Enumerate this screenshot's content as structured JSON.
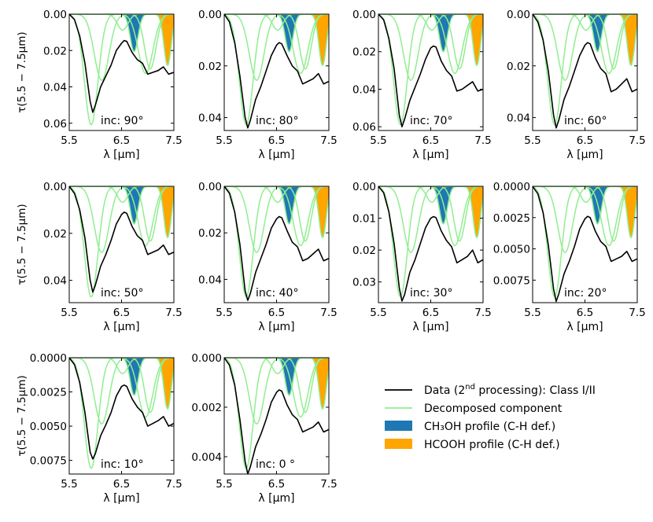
{
  "figure": {
    "data_label": "Data (2",
    "data_label_sup": "nd",
    "data_label_rest": " processing): Class I/II",
    "component_label": "Decomposed component",
    "ch3oh_label": "CH₃OH profile (C-H def.)",
    "hcooh_label": "HCOOH profile (C-H def.)",
    "xlabel": "λ [μm]",
    "ylabel": "τ(5.5 − 7.5μm)",
    "colors": {
      "data": "#000000",
      "component": "#90ee90",
      "ch3oh": "#1f77b4",
      "hcooh": "#ffa500"
    }
  },
  "chart_data": [
    {
      "type": "line",
      "panel": 1,
      "label": "inc: 90°",
      "xlim": [
        5.5,
        7.5
      ],
      "xticks": [
        "5.5",
        "6.5",
        "7.5"
      ],
      "ylim": [
        0.0,
        0.064
      ],
      "yticks": [
        "0.00",
        "0.02",
        "0.04",
        "0.06"
      ],
      "ytick_values": [
        0.0,
        0.02,
        0.04,
        0.06
      ],
      "ylabel": "τ(5.5 − 7.5μm)",
      "xlabel": "λ [μm]",
      "x": [
        5.5,
        5.6,
        5.7,
        5.8,
        5.9,
        5.95,
        6.0,
        6.1,
        6.2,
        6.3,
        6.4,
        6.5,
        6.55,
        6.6,
        6.7,
        6.8,
        6.9,
        7.0,
        7.1,
        7.2,
        7.3,
        7.4,
        7.5
      ],
      "tau": [
        0.0,
        0.003,
        0.012,
        0.027,
        0.048,
        0.054,
        0.05,
        0.04,
        0.034,
        0.028,
        0.02,
        0.016,
        0.0145,
        0.015,
        0.021,
        0.025,
        0.027,
        0.033,
        0.032,
        0.031,
        0.029,
        0.033,
        0.032
      ]
    },
    {
      "type": "line",
      "panel": 2,
      "label": "inc: 80°",
      "xlim": [
        5.5,
        7.5
      ],
      "xticks": [
        "5.5",
        "6.5",
        "7.5"
      ],
      "ylim": [
        0.0,
        0.045
      ],
      "yticks": [
        "0.00",
        "0.02",
        "0.04"
      ],
      "ytick_values": [
        0.0,
        0.02,
        0.04
      ],
      "ylabel": "",
      "xlabel": "λ [μm]",
      "x": [
        5.5,
        5.6,
        5.7,
        5.8,
        5.9,
        5.95,
        6.0,
        6.1,
        6.2,
        6.3,
        6.4,
        6.5,
        6.55,
        6.6,
        6.7,
        6.8,
        6.9,
        7.0,
        7.1,
        7.2,
        7.3,
        7.4,
        7.5
      ],
      "tau": [
        0.0,
        0.003,
        0.011,
        0.024,
        0.04,
        0.044,
        0.041,
        0.033,
        0.028,
        0.022,
        0.016,
        0.012,
        0.011,
        0.0115,
        0.016,
        0.02,
        0.022,
        0.027,
        0.026,
        0.025,
        0.023,
        0.027,
        0.026
      ]
    },
    {
      "type": "line",
      "panel": 3,
      "label": "inc: 70°",
      "xlim": [
        5.5,
        7.5
      ],
      "xticks": [
        "5.5",
        "6.5",
        "7.5"
      ],
      "ylim": [
        0.0,
        0.062
      ],
      "yticks": [
        "0.00",
        "0.02",
        "0.04",
        "0.06"
      ],
      "ytick_values": [
        0.0,
        0.02,
        0.04,
        0.06
      ],
      "ylabel": "",
      "xlabel": "λ [μm]",
      "x": [
        5.5,
        5.6,
        5.7,
        5.8,
        5.9,
        5.95,
        6.0,
        6.1,
        6.2,
        6.3,
        6.4,
        6.5,
        6.55,
        6.6,
        6.7,
        6.8,
        6.9,
        7.0,
        7.1,
        7.2,
        7.3,
        7.4,
        7.5
      ],
      "tau": [
        0.0,
        0.003,
        0.013,
        0.029,
        0.054,
        0.06,
        0.056,
        0.046,
        0.039,
        0.032,
        0.024,
        0.018,
        0.017,
        0.0175,
        0.025,
        0.03,
        0.033,
        0.041,
        0.04,
        0.038,
        0.036,
        0.041,
        0.04
      ]
    },
    {
      "type": "line",
      "panel": 4,
      "label": "inc: 60°",
      "xlim": [
        5.5,
        7.5
      ],
      "xticks": [
        "5.5",
        "6.5",
        "7.5"
      ],
      "ylim": [
        0.0,
        0.045
      ],
      "yticks": [
        "0.00",
        "0.02",
        "0.04"
      ],
      "ytick_values": [
        0.0,
        0.02,
        0.04
      ],
      "ylabel": "",
      "xlabel": "λ [μm]",
      "x": [
        5.5,
        5.6,
        5.7,
        5.8,
        5.9,
        5.95,
        6.0,
        6.1,
        6.2,
        6.3,
        6.4,
        6.5,
        6.55,
        6.6,
        6.7,
        6.8,
        6.9,
        7.0,
        7.1,
        7.2,
        7.3,
        7.4,
        7.5
      ],
      "tau": [
        0.0,
        0.003,
        0.01,
        0.022,
        0.039,
        0.044,
        0.041,
        0.033,
        0.028,
        0.022,
        0.016,
        0.012,
        0.011,
        0.0115,
        0.017,
        0.021,
        0.023,
        0.03,
        0.029,
        0.027,
        0.025,
        0.03,
        0.029
      ]
    },
    {
      "type": "line",
      "panel": 5,
      "label": "inc: 50°",
      "xlim": [
        5.5,
        7.5
      ],
      "xticks": [
        "5.5",
        "6.5",
        "7.5"
      ],
      "ylim": [
        0.0,
        0.0495
      ],
      "yticks": [
        "0.00",
        "0.02",
        "0.04"
      ],
      "ytick_values": [
        0.0,
        0.02,
        0.04
      ],
      "ylabel": "τ(5.5 − 7.5μm)",
      "xlabel": "λ [μm]",
      "x": [
        5.5,
        5.6,
        5.7,
        5.8,
        5.9,
        5.95,
        6.0,
        6.1,
        6.2,
        6.3,
        6.4,
        6.5,
        6.55,
        6.6,
        6.7,
        6.8,
        6.9,
        7.0,
        7.1,
        7.2,
        7.3,
        7.4,
        7.5
      ],
      "tau": [
        0.0,
        0.003,
        0.01,
        0.022,
        0.04,
        0.045,
        0.042,
        0.034,
        0.029,
        0.023,
        0.016,
        0.012,
        0.011,
        0.0115,
        0.017,
        0.021,
        0.023,
        0.029,
        0.028,
        0.027,
        0.025,
        0.029,
        0.028
      ]
    },
    {
      "type": "line",
      "panel": 6,
      "label": "inc: 40°",
      "xlim": [
        5.5,
        7.5
      ],
      "xticks": [
        "5.5",
        "6.5",
        "7.5"
      ],
      "ylim": [
        0.0,
        0.05
      ],
      "yticks": [
        "0.00",
        "0.02",
        "0.04"
      ],
      "ytick_values": [
        0.0,
        0.02,
        0.04
      ],
      "ylabel": "",
      "xlabel": "λ [μm]",
      "x": [
        5.5,
        5.6,
        5.7,
        5.8,
        5.9,
        5.95,
        6.0,
        6.1,
        6.2,
        6.3,
        6.4,
        6.5,
        6.55,
        6.6,
        6.7,
        6.8,
        6.9,
        7.0,
        7.1,
        7.2,
        7.3,
        7.4,
        7.5
      ],
      "tau": [
        0.0,
        0.003,
        0.011,
        0.025,
        0.045,
        0.049,
        0.046,
        0.037,
        0.031,
        0.025,
        0.018,
        0.014,
        0.013,
        0.0135,
        0.019,
        0.024,
        0.026,
        0.032,
        0.031,
        0.029,
        0.027,
        0.032,
        0.031
      ]
    },
    {
      "type": "line",
      "panel": 7,
      "label": "inc: 30°",
      "xlim": [
        5.5,
        7.5
      ],
      "xticks": [
        "5.5",
        "6.5",
        "7.5"
      ],
      "ylim": [
        0.0,
        0.0365
      ],
      "yticks": [
        "0.00",
        "0.01",
        "0.02",
        "0.03"
      ],
      "ytick_values": [
        0.0,
        0.01,
        0.02,
        0.03
      ],
      "ylabel": "",
      "xlabel": "λ [μm]",
      "x": [
        5.5,
        5.6,
        5.7,
        5.8,
        5.9,
        5.95,
        6.0,
        6.1,
        6.2,
        6.3,
        6.4,
        6.5,
        6.55,
        6.6,
        6.7,
        6.8,
        6.9,
        7.0,
        7.1,
        7.2,
        7.3,
        7.4,
        7.5
      ],
      "tau": [
        0.0,
        0.002,
        0.008,
        0.018,
        0.032,
        0.036,
        0.034,
        0.027,
        0.023,
        0.018,
        0.013,
        0.01,
        0.0095,
        0.0098,
        0.014,
        0.017,
        0.019,
        0.024,
        0.023,
        0.022,
        0.02,
        0.024,
        0.023
      ]
    },
    {
      "type": "line",
      "panel": 8,
      "label": "inc: 20°",
      "xlim": [
        5.5,
        7.5
      ],
      "xticks": [
        "5.5",
        "6.5",
        "7.5"
      ],
      "ylim": [
        0.0,
        0.0093
      ],
      "yticks": [
        "0.0000",
        "0.0025",
        "0.0050",
        "0.0075"
      ],
      "ytick_values": [
        0.0,
        0.0025,
        0.005,
        0.0075
      ],
      "ylabel": "",
      "xlabel": "λ [μm]",
      "x": [
        5.5,
        5.6,
        5.7,
        5.8,
        5.9,
        5.95,
        6.0,
        6.1,
        6.2,
        6.3,
        6.4,
        6.5,
        6.55,
        6.6,
        6.7,
        6.8,
        6.9,
        7.0,
        7.1,
        7.2,
        7.3,
        7.4,
        7.5
      ],
      "tau": [
        0.0,
        0.0006,
        0.0021,
        0.0047,
        0.0082,
        0.0092,
        0.0086,
        0.007,
        0.006,
        0.0048,
        0.0034,
        0.0026,
        0.0024,
        0.0025,
        0.0036,
        0.0044,
        0.0048,
        0.006,
        0.0058,
        0.0056,
        0.0052,
        0.006,
        0.0058
      ]
    },
    {
      "type": "line",
      "panel": 9,
      "label": "inc: 10°",
      "xlim": [
        5.5,
        7.5
      ],
      "xticks": [
        "5.5",
        "6.5",
        "7.5"
      ],
      "ylim": [
        0.0,
        0.0085
      ],
      "yticks": [
        "0.0000",
        "0.0025",
        "0.0050",
        "0.0075"
      ],
      "ytick_values": [
        0.0,
        0.0025,
        0.005,
        0.0075
      ],
      "ylabel": "τ(5.5 − 7.5μm)",
      "xlabel": "λ [μm]",
      "x": [
        5.5,
        5.6,
        5.7,
        5.8,
        5.9,
        5.95,
        6.0,
        6.1,
        6.2,
        6.3,
        6.4,
        6.5,
        6.55,
        6.6,
        6.7,
        6.8,
        6.9,
        7.0,
        7.1,
        7.2,
        7.3,
        7.4,
        7.5
      ],
      "tau": [
        0.0,
        0.0005,
        0.0018,
        0.004,
        0.0069,
        0.0074,
        0.007,
        0.0057,
        0.0049,
        0.004,
        0.0028,
        0.0021,
        0.002,
        0.0021,
        0.003,
        0.0036,
        0.004,
        0.005,
        0.0048,
        0.0046,
        0.0043,
        0.005,
        0.0048
      ]
    },
    {
      "type": "line",
      "panel": 10,
      "label": "inc:  0 °",
      "xlim": [
        5.5,
        7.5
      ],
      "xticks": [
        "5.5",
        "6.5",
        "7.5"
      ],
      "ylim": [
        0.0,
        0.0047
      ],
      "yticks": [
        "0.000",
        "0.002",
        "0.004"
      ],
      "ytick_values": [
        0.0,
        0.002,
        0.004
      ],
      "ylabel": "",
      "xlabel": "λ [μm]",
      "x": [
        5.5,
        5.6,
        5.7,
        5.8,
        5.9,
        5.95,
        6.0,
        6.1,
        6.2,
        6.3,
        6.4,
        6.5,
        6.55,
        6.6,
        6.7,
        6.8,
        6.9,
        7.0,
        7.1,
        7.2,
        7.3,
        7.4,
        7.5
      ],
      "tau": [
        0.0,
        0.0003,
        0.0011,
        0.0025,
        0.0042,
        0.0047,
        0.0044,
        0.0036,
        0.0031,
        0.0025,
        0.0018,
        0.0014,
        0.0013,
        0.00135,
        0.0019,
        0.0023,
        0.0025,
        0.003,
        0.0029,
        0.0028,
        0.0026,
        0.003,
        0.0029
      ]
    }
  ]
}
